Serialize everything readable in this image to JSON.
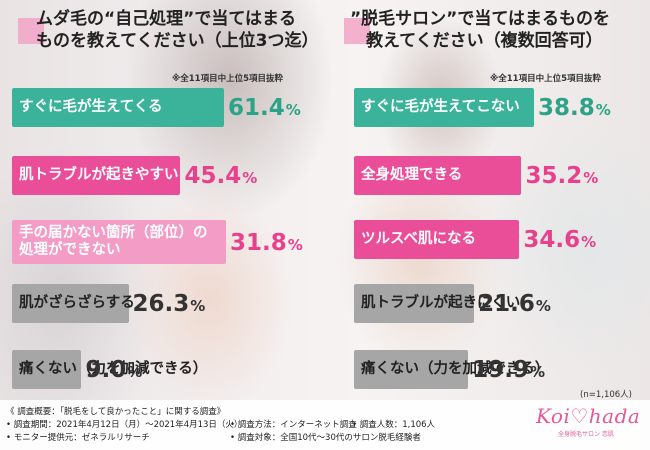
{
  "colors": {
    "teal": "#3bb39a",
    "pink": "#ea4e99",
    "light_pink": "#f29cc6",
    "gray": "#a7a6a6",
    "value_teal": "#2aa387",
    "value_pink": "#e8418c",
    "value_gray": "#333333"
  },
  "left": {
    "title": [
      "ムダ毛の“自己処理”で当てはまる",
      "ものを教えてください（上位3つ迄）"
    ],
    "note": "※全11項目中上位5項目抜粋"
  },
  "right": {
    "title": [
      "”脱毛サロン”で当てはまるものを",
      "教えてください（複数回答可）"
    ],
    "note": "※全11項目中上位5項目抜粋"
  },
  "chart_data": [
    {
      "type": "bar",
      "title": "ムダ毛の“自己処理”で当てはまるものを教えてください（上位3つ迄）",
      "unit": "%",
      "categories": [
        "すぐに毛が生えてくる",
        "肌トラブルが起きやすい",
        "手の届かない箇所（部位）の処理ができない",
        "肌がざらざらする",
        "痛くない（力を加減できる）"
      ],
      "labels": [
        [
          "すぐに毛が生えてくる"
        ],
        [
          "肌トラブルが起きやすい"
        ],
        [
          "手の届かない箇所（部位）の",
          "処理ができない"
        ],
        [
          "肌がざらざらする"
        ],
        [
          "痛くない（力を加減できる）"
        ]
      ],
      "values": [
        61.4,
        45.4,
        31.8,
        26.3,
        9.0
      ],
      "value_text": [
        "61.4",
        "45.4",
        "31.8",
        "26.3",
        "9.0"
      ],
      "styles": [
        "teal",
        "pink",
        "light_pink",
        "gray",
        "gray"
      ]
    },
    {
      "type": "bar",
      "title": "”脱毛サロン”で当てはまるものを教えてください（複数回答可）",
      "unit": "%",
      "categories": [
        "すぐに毛が生えてこない",
        "全身処理できる",
        "ツルスベ肌になる",
        "肌トラブルが起きにくい",
        "痛くない（力を加減できる）"
      ],
      "labels": [
        [
          "すぐに毛が生えてこない"
        ],
        [
          "全身処理できる"
        ],
        [
          "ツルスベ肌になる"
        ],
        [
          "肌トラブルが起きにくい"
        ],
        [
          "痛くない（力を加減できる）"
        ]
      ],
      "values": [
        38.8,
        35.2,
        34.6,
        21.6,
        19.9
      ],
      "value_text": [
        "38.8",
        "35.2",
        "34.6",
        "21.6",
        "19.9"
      ],
      "styles": [
        "teal",
        "pink",
        "pink",
        "gray",
        "gray"
      ]
    }
  ],
  "n_count": "(n=1,106人)",
  "footer": {
    "survey_title": "《 調査概要：「脱毛をして良かったこと」に関する調査》",
    "lines": [
      "• 調査期間：2021年4月12日（月）～2021年4月13日（火）",
      "• 調査方法：インターネット調査",
      "• 調査人数：1,106人",
      "• モニター提供元：ゼネラルリサーチ",
      "• 調査対象：全国10代～30代のサロン脱毛経験者"
    ]
  },
  "logo": {
    "text": "Koi♡hada",
    "sub": "全身脱毛サロン 恋肌"
  }
}
